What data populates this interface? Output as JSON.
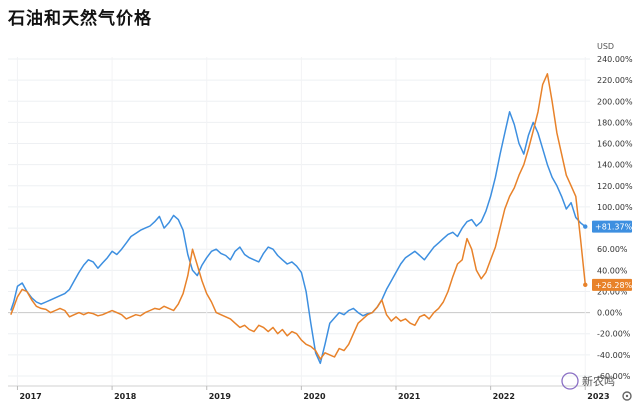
{
  "title": "石油和天然气价格",
  "chart_data": {
    "type": "line",
    "currency": "USD",
    "y_unit": "%",
    "ylim": [
      -60,
      250
    ],
    "y_ticks": [
      -60,
      -40,
      -20,
      0,
      20,
      40,
      60,
      80,
      100,
      120,
      140,
      160,
      180,
      200,
      220,
      240
    ],
    "y_tick_labels": [
      "-60.00%",
      "-40.00%",
      "-20.00%",
      "0.00%",
      "20.00%",
      "40.00%",
      "60.00%",
      "80.00%",
      "100.00%",
      "120.00%",
      "140.00%",
      "160.00%",
      "180.00%",
      "200.00%",
      "220.00%",
      "240.00%"
    ],
    "x_ticks": [
      2017,
      2018,
      2019,
      2020,
      2021,
      2022,
      2023
    ],
    "x_tick_labels": [
      "2017",
      "2018",
      "2019",
      "2020",
      "2021",
      "2022",
      "2023"
    ],
    "grid": true,
    "zero_line": 0,
    "series": [
      {
        "color": "#3d8fe0",
        "last_label": "+81.37%",
        "x": [
          2016.93,
          2016.96,
          2017.0,
          2017.05,
          2017.1,
          2017.15,
          2017.2,
          2017.25,
          2017.3,
          2017.35,
          2017.4,
          2017.45,
          2017.5,
          2017.55,
          2017.6,
          2017.65,
          2017.7,
          2017.75,
          2017.8,
          2017.85,
          2017.9,
          2017.95,
          2018.0,
          2018.05,
          2018.1,
          2018.15,
          2018.2,
          2018.25,
          2018.3,
          2018.35,
          2018.4,
          2018.45,
          2018.5,
          2018.55,
          2018.6,
          2018.65,
          2018.7,
          2018.75,
          2018.8,
          2018.85,
          2018.9,
          2018.95,
          2019.0,
          2019.05,
          2019.1,
          2019.15,
          2019.2,
          2019.25,
          2019.3,
          2019.35,
          2019.4,
          2019.45,
          2019.5,
          2019.55,
          2019.6,
          2019.65,
          2019.7,
          2019.75,
          2019.8,
          2019.85,
          2019.9,
          2019.95,
          2020.0,
          2020.05,
          2020.1,
          2020.15,
          2020.2,
          2020.25,
          2020.3,
          2020.35,
          2020.4,
          2020.45,
          2020.5,
          2020.55,
          2020.6,
          2020.65,
          2020.7,
          2020.75,
          2020.8,
          2020.85,
          2020.9,
          2020.95,
          2021.0,
          2021.05,
          2021.1,
          2021.15,
          2021.2,
          2021.25,
          2021.3,
          2021.35,
          2021.4,
          2021.45,
          2021.5,
          2021.55,
          2021.6,
          2021.65,
          2021.7,
          2021.75,
          2021.8,
          2021.85,
          2021.9,
          2021.95,
          2022.0,
          2022.05,
          2022.1,
          2022.15,
          2022.2,
          2022.25,
          2022.3,
          2022.35,
          2022.4,
          2022.45,
          2022.5,
          2022.55,
          2022.6,
          2022.65,
          2022.7,
          2022.75,
          2022.8,
          2022.85,
          2022.9,
          2022.95,
          2023.0
        ],
        "y": [
          2,
          10,
          25,
          28,
          20,
          14,
          10,
          8,
          10,
          12,
          14,
          16,
          18,
          22,
          30,
          38,
          45,
          50,
          48,
          42,
          47,
          52,
          58,
          55,
          60,
          66,
          72,
          75,
          78,
          80,
          82,
          86,
          91,
          80,
          85,
          92,
          88,
          78,
          55,
          40,
          35,
          45,
          52,
          58,
          60,
          56,
          54,
          50,
          58,
          62,
          55,
          52,
          50,
          48,
          56,
          62,
          60,
          54,
          50,
          46,
          48,
          44,
          38,
          20,
          -10,
          -38,
          -48,
          -30,
          -10,
          -5,
          0,
          -2,
          2,
          4,
          0,
          -3,
          -1,
          0,
          5,
          12,
          22,
          30,
          38,
          46,
          52,
          55,
          58,
          54,
          50,
          56,
          62,
          66,
          70,
          74,
          76,
          72,
          80,
          86,
          88,
          82,
          86,
          96,
          110,
          128,
          150,
          170,
          190,
          178,
          160,
          150,
          168,
          180,
          170,
          155,
          140,
          128,
          120,
          110,
          98,
          104,
          90,
          85,
          81.37
        ]
      },
      {
        "color": "#e8822a",
        "last_label": "+26.28%",
        "x": [
          2016.93,
          2016.96,
          2017.0,
          2017.05,
          2017.1,
          2017.15,
          2017.2,
          2017.25,
          2017.3,
          2017.35,
          2017.4,
          2017.45,
          2017.5,
          2017.55,
          2017.6,
          2017.65,
          2017.7,
          2017.75,
          2017.8,
          2017.85,
          2017.9,
          2017.95,
          2018.0,
          2018.05,
          2018.1,
          2018.15,
          2018.2,
          2018.25,
          2018.3,
          2018.35,
          2018.4,
          2018.45,
          2018.5,
          2018.55,
          2018.6,
          2018.65,
          2018.7,
          2018.75,
          2018.8,
          2018.85,
          2018.9,
          2018.95,
          2019.0,
          2019.05,
          2019.1,
          2019.15,
          2019.2,
          2019.25,
          2019.3,
          2019.35,
          2019.4,
          2019.45,
          2019.5,
          2019.55,
          2019.6,
          2019.65,
          2019.7,
          2019.75,
          2019.8,
          2019.85,
          2019.9,
          2019.95,
          2020.0,
          2020.05,
          2020.1,
          2020.15,
          2020.2,
          2020.25,
          2020.3,
          2020.35,
          2020.4,
          2020.45,
          2020.5,
          2020.55,
          2020.6,
          2020.65,
          2020.7,
          2020.75,
          2020.8,
          2020.85,
          2020.9,
          2020.95,
          2021.0,
          2021.05,
          2021.1,
          2021.15,
          2021.2,
          2021.25,
          2021.3,
          2021.35,
          2021.4,
          2021.45,
          2021.5,
          2021.55,
          2021.6,
          2021.65,
          2021.7,
          2021.75,
          2021.8,
          2021.85,
          2021.9,
          2021.95,
          2022.0,
          2022.05,
          2022.1,
          2022.15,
          2022.2,
          2022.25,
          2022.3,
          2022.35,
          2022.4,
          2022.45,
          2022.5,
          2022.55,
          2022.6,
          2022.65,
          2022.7,
          2022.75,
          2022.8,
          2022.85,
          2022.9,
          2022.95,
          2023.0
        ],
        "y": [
          -2,
          5,
          15,
          22,
          20,
          12,
          6,
          4,
          3,
          0,
          2,
          4,
          2,
          -4,
          -2,
          0,
          -2,
          0,
          -1,
          -3,
          -2,
          0,
          2,
          0,
          -2,
          -6,
          -4,
          -2,
          -3,
          0,
          2,
          4,
          3,
          6,
          4,
          2,
          8,
          18,
          35,
          60,
          45,
          30,
          18,
          10,
          0,
          -2,
          -4,
          -6,
          -10,
          -14,
          -12,
          -16,
          -18,
          -12,
          -14,
          -18,
          -14,
          -20,
          -16,
          -22,
          -18,
          -20,
          -26,
          -30,
          -32,
          -36,
          -44,
          -38,
          -40,
          -42,
          -34,
          -36,
          -30,
          -20,
          -10,
          -6,
          -2,
          0,
          5,
          12,
          -2,
          -8,
          -4,
          -8,
          -6,
          -10,
          -12,
          -4,
          -2,
          -6,
          0,
          4,
          10,
          20,
          34,
          46,
          50,
          70,
          60,
          40,
          32,
          38,
          50,
          62,
          80,
          98,
          110,
          118,
          130,
          140,
          155,
          172,
          190,
          216,
          226,
          200,
          170,
          150,
          130,
          120,
          110,
          70,
          26.28
        ]
      }
    ],
    "watermark": "新农鸣"
  }
}
